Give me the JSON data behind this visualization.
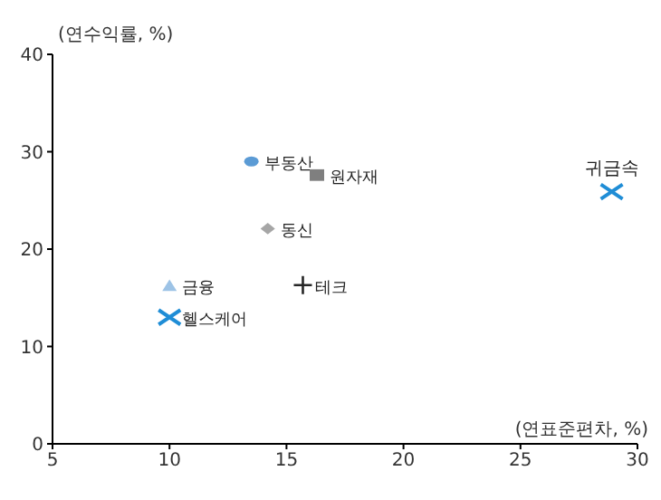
{
  "chart_data": {
    "type": "scatter",
    "xlabel": "(연표준편차, %)",
    "ylabel": "(연수익률, %)",
    "xlim": [
      5,
      30
    ],
    "xticks": [
      5,
      10,
      15,
      20,
      25,
      30
    ],
    "ylim": [
      0,
      40
    ],
    "yticks": [
      0,
      10,
      20,
      30,
      40
    ],
    "grid": false,
    "legend": false,
    "series": [
      {
        "name": "부동산",
        "color": "#5b9bd5",
        "marker": "circle",
        "x": [
          13.5
        ],
        "values": [
          29.0
        ]
      },
      {
        "name": "원자재",
        "color": "#7f7f7f",
        "marker": "square",
        "x": [
          16.3
        ],
        "values": [
          27.6
        ]
      },
      {
        "name": "동신",
        "color": "#a6a6a6",
        "marker": "diamond",
        "x": [
          14.2
        ],
        "values": [
          22.1
        ]
      },
      {
        "name": "금융",
        "color": "#9dc3e6",
        "marker": "triangle",
        "x": [
          10.0
        ],
        "values": [
          16.3
        ]
      },
      {
        "name": "테크",
        "color": "#262626",
        "marker": "plus",
        "x": [
          15.7
        ],
        "values": [
          16.3
        ]
      },
      {
        "name": "헬스케어",
        "color": "#1f8dd6",
        "marker": "cross",
        "x": [
          10.0
        ],
        "values": [
          13.0
        ]
      },
      {
        "name": "귀금속",
        "color": "#1f8dd6",
        "marker": "cross",
        "x": [
          28.9
        ],
        "values": [
          25.9
        ]
      }
    ]
  }
}
